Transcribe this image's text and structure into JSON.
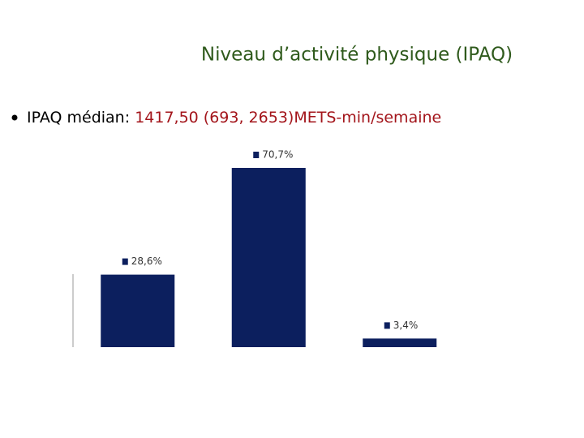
{
  "slide": {
    "bullet_label": "IPAQ médian:",
    "bullet_value": "1417,50 (693, 2653)METS-min/semaine"
  },
  "chart_data": {
    "type": "bar",
    "title": "Niveau d’activité physique (IPAQ)",
    "categories": [
      null,
      null,
      null
    ],
    "values": [
      28.6,
      70.7,
      3.4
    ],
    "value_labels": [
      "28,6%",
      "70,7%",
      "3,4%"
    ],
    "color": "#0c1f5e"
  }
}
